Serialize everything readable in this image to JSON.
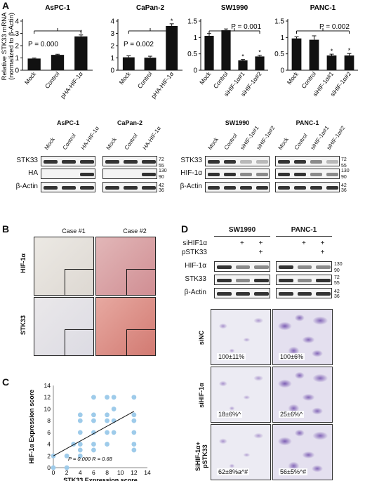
{
  "panels": {
    "a": "A",
    "b": "B",
    "c": "C",
    "d": "D"
  },
  "bar_axis_label": "Relative STK33 mRNA\n(normalized to β-Actin)",
  "chart_data": [
    {
      "type": "bar",
      "title": "AsPC-1",
      "categories": [
        "Mock",
        "Control",
        "pHA-HIF-1α"
      ],
      "values": [
        0.95,
        1.25,
        2.75
      ],
      "errors": [
        0.04,
        0.05,
        0.12
      ],
      "ylim": [
        0,
        4
      ],
      "yticks": [
        0,
        1,
        2,
        3,
        4
      ],
      "annotation": "P = 0.000",
      "marker": "*"
    },
    {
      "type": "bar",
      "title": "CaPan-2",
      "categories": [
        "Mock",
        "Control",
        "pHA-HIF-1α"
      ],
      "values": [
        1.05,
        1.02,
        3.6
      ],
      "errors": [
        0.12,
        0.12,
        0.18
      ],
      "ylim": [
        0,
        4
      ],
      "yticks": [
        0,
        1,
        2,
        3,
        4
      ],
      "annotation": "P = 0.002",
      "marker": "*"
    },
    {
      "type": "bar",
      "title": "SW1990",
      "categories": [
        "Mock",
        "Control",
        "siHIF-1α#1",
        "siHIF-1α#2"
      ],
      "values": [
        1.05,
        1.22,
        0.3,
        0.42
      ],
      "errors": [
        0.07,
        0.04,
        0.03,
        0.04
      ],
      "ylim": [
        0,
        1.5
      ],
      "yticks": [
        0,
        0.5,
        1,
        1.5
      ],
      "annotation": "P = 0.001",
      "marker": "*"
    },
    {
      "type": "bar",
      "title": "PANC-1",
      "categories": [
        "Mock",
        "Control",
        "siHIF-1α#1",
        "siHIF-1α#2"
      ],
      "values": [
        0.97,
        0.93,
        0.45,
        0.45
      ],
      "errors": [
        0.05,
        0.12,
        0.04,
        0.06
      ],
      "ylim": [
        0,
        1.5
      ],
      "yticks": [
        0,
        0.5,
        1,
        1.5
      ],
      "annotation": "P = 0.002",
      "marker": "*"
    },
    {
      "type": "scatter",
      "xlabel": "STK33 Expression score",
      "ylabel": "HIF-1α Expression score",
      "xlim": [
        0,
        14
      ],
      "ylim": [
        0,
        14
      ],
      "xticks": [
        0,
        2,
        4,
        6,
        8,
        10,
        12,
        14
      ],
      "yticks": [
        0,
        2,
        4,
        6,
        8,
        10,
        12,
        14
      ],
      "points": [
        [
          0,
          0
        ],
        [
          0,
          2
        ],
        [
          2,
          0
        ],
        [
          2,
          2
        ],
        [
          3,
          4
        ],
        [
          4,
          2
        ],
        [
          4,
          3
        ],
        [
          4,
          4
        ],
        [
          4,
          6
        ],
        [
          4,
          8
        ],
        [
          4,
          9
        ],
        [
          6,
          3
        ],
        [
          6,
          4
        ],
        [
          6,
          6
        ],
        [
          6,
          8
        ],
        [
          6,
          9
        ],
        [
          6,
          12
        ],
        [
          8,
          4
        ],
        [
          8,
          6
        ],
        [
          8,
          8
        ],
        [
          8,
          9
        ],
        [
          8,
          12
        ],
        [
          9,
          6
        ],
        [
          9,
          8
        ],
        [
          9,
          10
        ],
        [
          9,
          12
        ],
        [
          12,
          3
        ],
        [
          12,
          4
        ],
        [
          12,
          6
        ],
        [
          12,
          8
        ],
        [
          12,
          9
        ],
        [
          12,
          12
        ]
      ],
      "trendline": [
        [
          0,
          2
        ],
        [
          12,
          9.6
        ]
      ],
      "annotation": "P = 0.000  R = 0.68"
    }
  ],
  "blots_a": [
    {
      "title": "AsPC-1",
      "cols": [
        "Mock",
        "Control",
        "HA-HIF-1α"
      ]
    },
    {
      "title": "CaPan-2",
      "cols": [
        "Mock",
        "Control",
        "HA-HIF-1α"
      ]
    },
    {
      "title": "SW1990",
      "cols": [
        "Mock",
        "Control",
        "siHIF-1α#1",
        "siHIF-1α#2"
      ]
    },
    {
      "title": "PANC-1",
      "cols": [
        "Mock",
        "Control",
        "siHIF-1α#1",
        "siHIF-1α#2"
      ]
    }
  ],
  "blot_rows_left": [
    "STK33",
    "HA",
    "β-Actin"
  ],
  "blot_rows_right": [
    "STK33",
    "HIF-1α",
    "β-Actin"
  ],
  "mw_a": [
    "72",
    "55",
    "130",
    "90",
    "42",
    "36"
  ],
  "histo": {
    "cols": [
      "Case #1",
      "Case #2"
    ],
    "rows": [
      "HIF-1α",
      "STK33"
    ]
  },
  "panel_d": {
    "groups": [
      "SW1990",
      "PANC-1"
    ],
    "treatments": [
      "siHIF1α",
      "pSTK33"
    ],
    "signs": {
      "siHIF1α": [
        "",
        "+",
        "+",
        "",
        "+",
        "+"
      ],
      "pSTK33": [
        "",
        "",
        "+",
        "",
        "",
        "+"
      ]
    },
    "rows": [
      "HIF-1α",
      "STK33",
      "β-Actin"
    ],
    "mw": [
      "130",
      "90",
      "72",
      "55",
      "42",
      "36"
    ],
    "inv_rows": [
      "siNC",
      "siHIF-1α",
      "SiHIF-1α+\npSTK33"
    ],
    "inv_pcts": [
      [
        "100±11%",
        "100±6%"
      ],
      [
        "18±6%^",
        "25±6%^"
      ],
      [
        "62±8%a^#",
        "56±5%^#"
      ]
    ]
  }
}
